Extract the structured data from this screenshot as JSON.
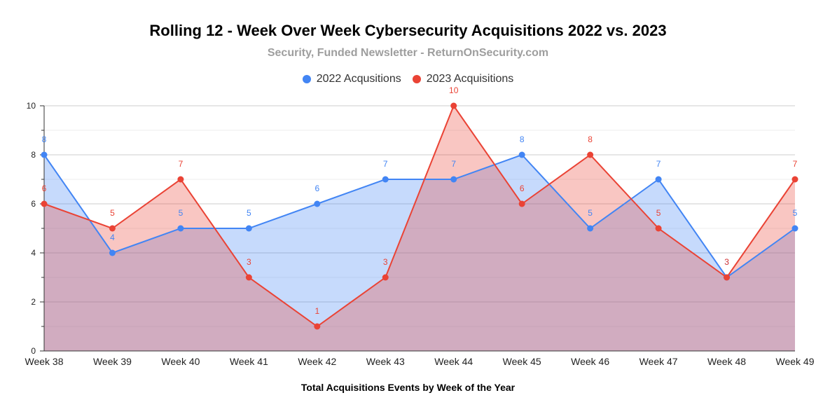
{
  "chart_data": {
    "type": "area",
    "title": "Rolling 12 - Week Over Week Cybersecurity Acquisitions 2022 vs. 2023",
    "subtitle": "Security, Funded Newsletter - ReturnOnSecurity.com",
    "xlabel": "Total Acquisitions Events by Week of the Year",
    "ylabel": "",
    "ylim": [
      0,
      10
    ],
    "yticks": [
      0,
      2,
      4,
      6,
      8,
      10
    ],
    "grid": true,
    "legend_position": "top-center",
    "categories": [
      "Week 38",
      "Week 39",
      "Week 40",
      "Week 41",
      "Week 42",
      "Week 43",
      "Week 44",
      "Week 45",
      "Week 46",
      "Week 47",
      "Week 48",
      "Week 49"
    ],
    "series": [
      {
        "name": "2022 Acqusitions",
        "color": "#4285f4",
        "fill": "#4285f4",
        "values": [
          8,
          4,
          5,
          5,
          6,
          7,
          7,
          8,
          5,
          7,
          3,
          5
        ]
      },
      {
        "name": "2023 Acquisitions",
        "color": "#ea4335",
        "fill": "#ea4335",
        "values": [
          6,
          5,
          7,
          3,
          1,
          3,
          10,
          6,
          8,
          5,
          3,
          7
        ]
      }
    ]
  }
}
